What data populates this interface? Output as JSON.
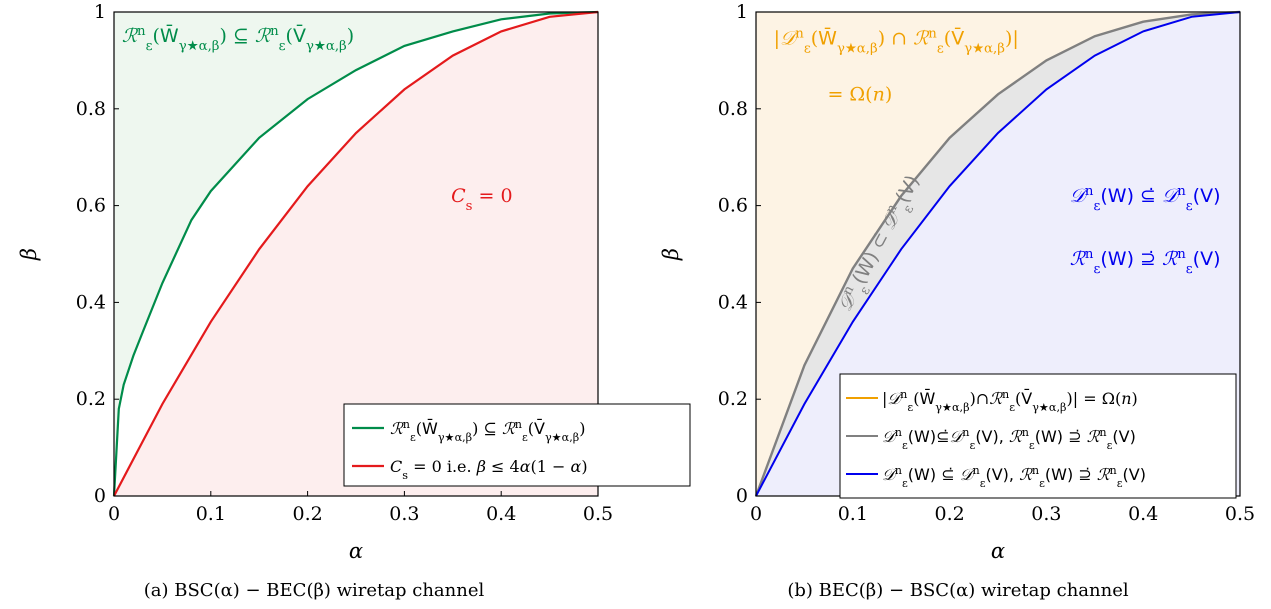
{
  "colors": {
    "green": "#008c4a",
    "red": "#e41a1c",
    "gray": "#808080",
    "blue": "#0000ee",
    "orange": "#f0a000",
    "green_fill": "#eef7ef",
    "red_fill": "#fdeeee",
    "orange_fill": "#fdf3e4",
    "blue_fill": "#eeeefc",
    "gray_fill": "#e6e6e6"
  },
  "chart_data": [
    {
      "type": "area",
      "panel": "a",
      "caption": "(a) BSC(α) − BEC(β) wiretap channel",
      "xlabel": "α",
      "ylabel": "β",
      "xlim": [
        0,
        0.5
      ],
      "ylim": [
        0,
        1
      ],
      "xticks": [
        "0",
        "0.1",
        "0.2",
        "0.3",
        "0.4",
        "0.5"
      ],
      "yticks": [
        "0",
        "0.2",
        "0.4",
        "0.6",
        "0.8",
        "1"
      ],
      "grid": false,
      "legend_position": "bottom-right",
      "series": [
        {
          "name": "R^n_ε(W̄_{γ*_{α,β}}) ⊆ R^n_ε(V̄_{γ*_{α,β}})",
          "color": "green",
          "x": [
            0,
            0.005,
            0.01,
            0.02,
            0.03,
            0.05,
            0.08,
            0.1,
            0.15,
            0.2,
            0.25,
            0.3,
            0.35,
            0.4,
            0.45,
            0.5
          ],
          "y": [
            0,
            0.18,
            0.23,
            0.29,
            0.34,
            0.44,
            0.57,
            0.63,
            0.74,
            0.82,
            0.88,
            0.93,
            0.96,
            0.985,
            0.997,
            1.0
          ]
        },
        {
          "name": "C_s = 0 i.e. β ≤ 4α(1 − α)",
          "color": "red",
          "x": [
            0,
            0.05,
            0.1,
            0.15,
            0.2,
            0.25,
            0.3,
            0.35,
            0.4,
            0.45,
            0.5
          ],
          "y": [
            0,
            0.19,
            0.36,
            0.51,
            0.64,
            0.75,
            0.84,
            0.91,
            0.96,
            0.99,
            1.0
          ]
        }
      ],
      "annotations": [
        {
          "text": "R^n_ε(W̄_{γ*_{α,β}}) ⊆ R^n_ε(V̄_{γ*_{α,β}})",
          "color": "green",
          "x": 0.004,
          "y": 0.95
        },
        {
          "text": "C_s = 0",
          "color": "red",
          "x": 0.38,
          "y": 0.62
        }
      ]
    },
    {
      "type": "area",
      "panel": "b",
      "caption": "(b) BEC(β) − BSC(α) wiretap channel",
      "xlabel": "α",
      "ylabel": "β",
      "xlim": [
        0,
        0.5
      ],
      "ylim": [
        0,
        1
      ],
      "xticks": [
        "0",
        "0.1",
        "0.2",
        "0.3",
        "0.4",
        "0.5"
      ],
      "yticks": [
        "0",
        "0.2",
        "0.4",
        "0.6",
        "0.8",
        "1"
      ],
      "grid": false,
      "legend_position": "bottom-right",
      "series": [
        {
          "name": "|D^n_ε(W̄_{γ*_{α,β}})∩R^n_ε(V̄_{γ*_{α,β}})| = Ω(n)",
          "color": "orange",
          "x": [],
          "y": []
        },
        {
          "name": "D^n_ε(W) ⊆̇ D^n_ε(V), R^n_ε(W) ⊇̇ R^n_ε(V)",
          "color": "gray",
          "x": [
            0,
            0.05,
            0.1,
            0.15,
            0.2,
            0.25,
            0.3,
            0.35,
            0.4,
            0.45,
            0.5
          ],
          "y": [
            0,
            0.27,
            0.47,
            0.62,
            0.74,
            0.83,
            0.9,
            0.95,
            0.98,
            0.995,
            1.0
          ]
        },
        {
          "name": "D^n_ε(W) ⊆̇ D^n_ε(V), R^n_ε(W) ⊇̇ R^n_ε(V)",
          "color": "blue",
          "x": [
            0,
            0.05,
            0.1,
            0.15,
            0.2,
            0.25,
            0.3,
            0.35,
            0.4,
            0.45,
            0.5
          ],
          "y": [
            0,
            0.19,
            0.36,
            0.51,
            0.64,
            0.75,
            0.84,
            0.91,
            0.96,
            0.99,
            1.0
          ]
        }
      ],
      "annotations": [
        {
          "text": "|D^n_ε(W̄_{γ*_{α,β}}) ∩ R^n_ε(V̄_{γ*_{α,β}})|",
          "color": "orange",
          "x": 0.01,
          "y": 0.92
        },
        {
          "text": "= Ω(n)",
          "color": "orange",
          "x": 0.08,
          "y": 0.83
        },
        {
          "text": "D^n_ε(W) ⊆̇ D^n_ε(V)",
          "color": "blue",
          "x": 0.32,
          "y": 0.62
        },
        {
          "text": "R^n_ε(W) ⊇̇ R^n_ε(V)",
          "color": "blue",
          "x": 0.32,
          "y": 0.49
        },
        {
          "text": "D^n_ε(W) ⊂̇ D^n_ε(V)",
          "color": "gray",
          "x": 0.1,
          "y": 0.42
        }
      ]
    }
  ]
}
